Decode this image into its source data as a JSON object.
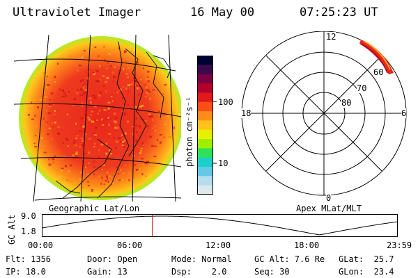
{
  "header": {
    "instrument": "Ultraviolet Imager",
    "date": "16 May 00",
    "time": "07:25:23 UT"
  },
  "colorbar": {
    "unit_label": "photon cm⁻²s⁻¹",
    "ticks": [
      "100",
      "10"
    ],
    "colors": [
      "#000033",
      "#3a0a4a",
      "#7a0044",
      "#b3002a",
      "#e01a1a",
      "#ff4d1a",
      "#ff8c1a",
      "#ffc21a",
      "#e8f000",
      "#9ef000",
      "#2fe05a",
      "#1ad0c8",
      "#66c8e8",
      "#b4dced",
      "#dde8ee"
    ]
  },
  "polar": {
    "mlt_labels": {
      "top": "12",
      "left": "18",
      "right": "6",
      "bottom": "0"
    },
    "lat_labels": [
      "60",
      "70",
      "80"
    ]
  },
  "map_label": "Geographic Lat/Lon",
  "polar_label": "Apex MLat/MLT",
  "altplot": {
    "ylabel": "GC Alt",
    "ymax": "9.0",
    "ymin": "1.8",
    "xticks": [
      "00:00",
      "06:00",
      "12:00",
      "18:00",
      "23:59"
    ],
    "cursor_time_hours": 7.42
  },
  "status": {
    "flt": "Flt: 1356",
    "ip": "IP: 18.0",
    "door": "Door: Open",
    "gain": "Gain: 13",
    "mode": "Mode: Normal",
    "dsp": "Dsp:    2.0",
    "gcalt": "GC Alt: 7.6 Re",
    "seq": "Seq: 30",
    "glat": "GLat:  25.7",
    "glon": "GLon:  23.4"
  }
}
